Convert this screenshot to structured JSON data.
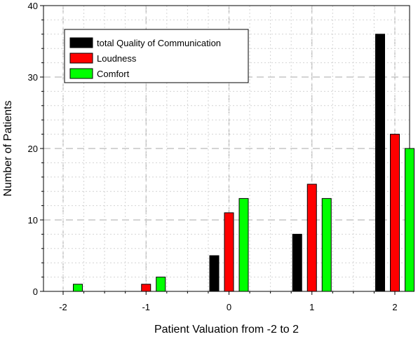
{
  "chart_data": {
    "type": "bar",
    "categories": [
      "-2",
      "-1",
      "0",
      "1",
      "2"
    ],
    "series": [
      {
        "name": "total Quality of Communication",
        "color": "#000000",
        "values": [
          0,
          0,
          5,
          8,
          36
        ]
      },
      {
        "name": "Loudness",
        "color": "#ff0000",
        "values": [
          0,
          1,
          11,
          15,
          22
        ]
      },
      {
        "name": "Comfort",
        "color": "#00ff00",
        "values": [
          1,
          2,
          13,
          13,
          20
        ]
      }
    ],
    "title": "",
    "xlabel": "Patient Valuation from -2 to 2",
    "ylabel": "Number of Patients",
    "ylim": [
      0,
      40
    ],
    "yticks": [
      0,
      10,
      20,
      30,
      40
    ],
    "grid": true,
    "legend_position": "top-left"
  }
}
